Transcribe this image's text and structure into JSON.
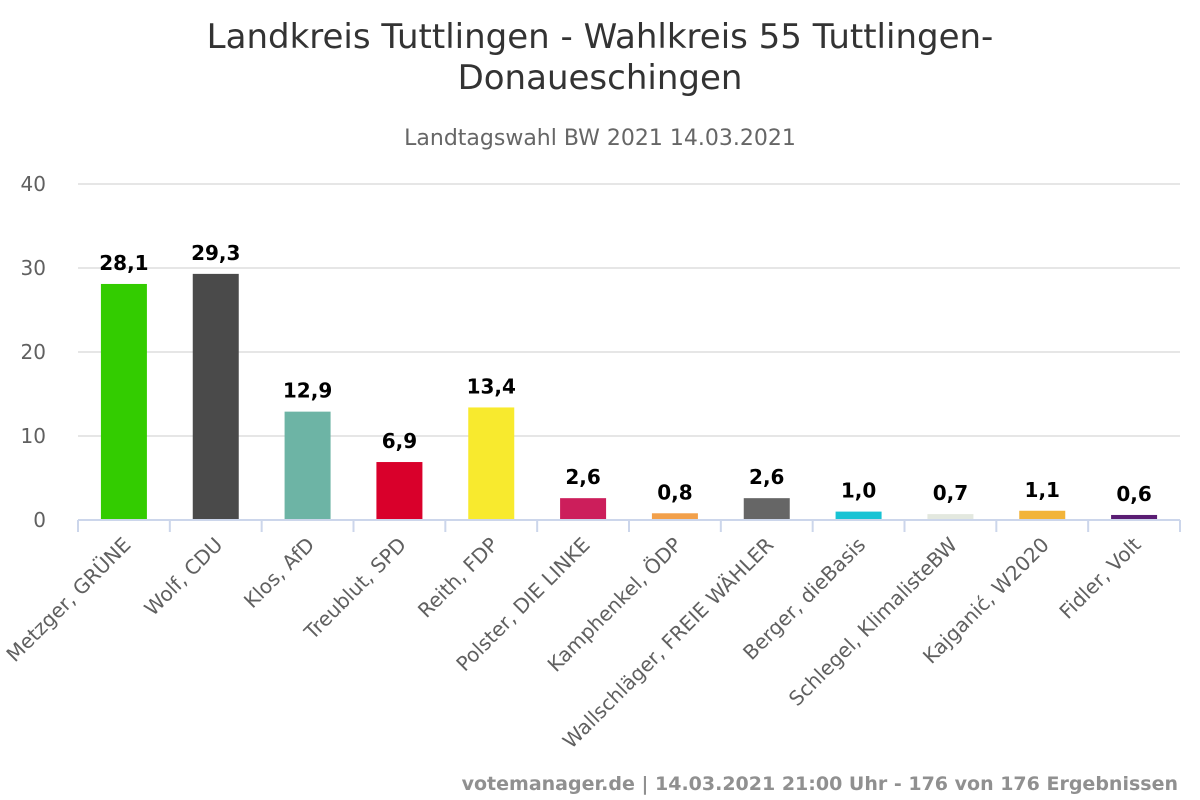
{
  "chart_data": {
    "type": "bar",
    "title_line1": "Landkreis Tuttlingen - Wahlkreis 55 Tuttlingen-",
    "title_line2": "Donaueschingen",
    "subtitle": "Landtagswahl BW 2021 14.03.2021",
    "categories": [
      "Metzger, GRÜNE",
      "Wolf, CDU",
      "Klos, AfD",
      "Treublut, SPD",
      "Reith, FDP",
      "Polster, DIE LINKE",
      "Kamphenkel, ÖDP",
      "Wallschläger, FREIE WÄHLER",
      "Berger, dieBasis",
      "Schlegel, KlimalisteBW",
      "Kajganić, W2020",
      "Fidler, Volt"
    ],
    "values": [
      28.1,
      29.3,
      12.9,
      6.9,
      13.4,
      2.6,
      0.8,
      2.6,
      1.0,
      0.7,
      1.1,
      0.6
    ],
    "data_labels": [
      "28,1",
      "29,3",
      "12,9",
      "6,9",
      "13,4",
      "2,6",
      "0,8",
      "2,6",
      "1,0",
      "0,7",
      "1,1",
      "0,6"
    ],
    "colors": [
      "#33cc00",
      "#4a4a4a",
      "#6db4a5",
      "#d9002b",
      "#f8ea2e",
      "#cc1e5b",
      "#f2a04a",
      "#666666",
      "#18c3d4",
      "#e3e8df",
      "#f2b43a",
      "#5a1d73"
    ],
    "ylim": [
      0,
      40
    ],
    "yticks": [
      0,
      10,
      20,
      30,
      40
    ],
    "grid": true,
    "legend": "none",
    "credits": "votemanager.de | 14.03.2021 21:00 Uhr - 176 von 176 Ergebnissen"
  }
}
